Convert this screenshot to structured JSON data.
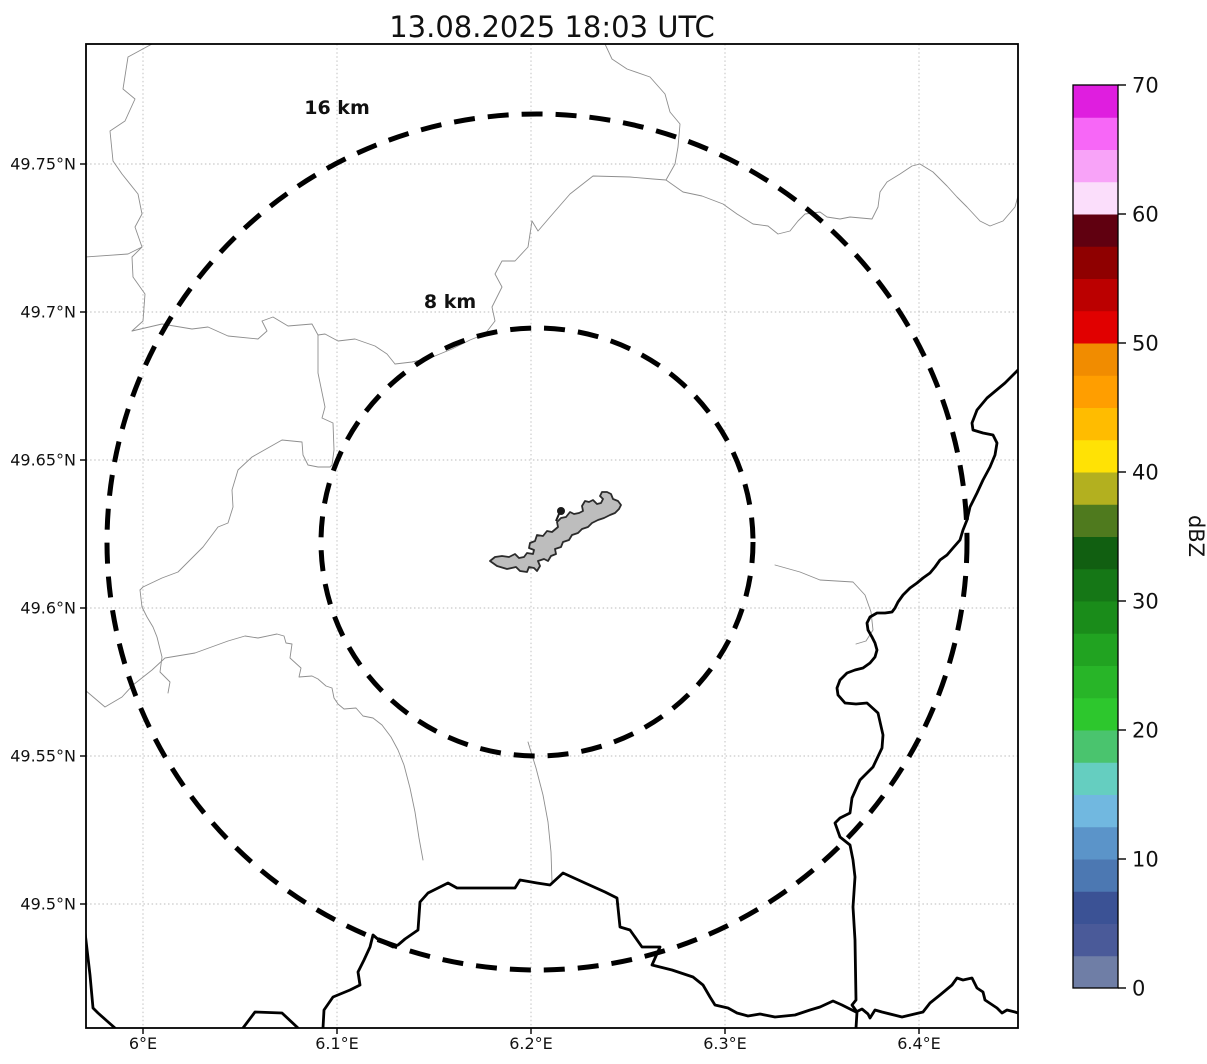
{
  "title": "13.08.2025 18:03 UTC",
  "map": {
    "range_rings": [
      {
        "label": "16 km",
        "radius_km": 16
      },
      {
        "label": "8 km",
        "radius_km": 8
      }
    ],
    "marker_icon": "radar-site-marker",
    "x_axis": {
      "tick_labels": [
        "6°E",
        "6.1°E",
        "6.2°E",
        "6.3°E",
        "6.4°E"
      ]
    },
    "y_axis": {
      "tick_labels": [
        "49.75°N",
        "49.7°N",
        "49.65°N",
        "49.6°N",
        "49.55°N",
        "49.5°N"
      ]
    }
  },
  "colorbar": {
    "label": "dBZ",
    "min": 0,
    "max": 70,
    "ticks": [
      0,
      10,
      20,
      30,
      40,
      50,
      60,
      70
    ],
    "tick_labels": [
      "0",
      "10",
      "20",
      "30",
      "40",
      "50",
      "60",
      "70"
    ],
    "segment_step_dbz": 2.5,
    "colors_bottom_to_top": [
      "#6F7EA6",
      "#4A5A99",
      "#3B5295",
      "#4C78B2",
      "#5B94C9",
      "#71B8E0",
      "#65CEC0",
      "#4AC46E",
      "#2DC72D",
      "#28B528",
      "#21A321",
      "#1A8C1A",
      "#157716",
      "#115F11",
      "#4F7A1E",
      "#B3B01F",
      "#FFE205",
      "#FFBC00",
      "#FF9E00",
      "#F18C00",
      "#E10000",
      "#BB0000",
      "#8F0000",
      "#600010",
      "#FBDEFB",
      "#F8A3F8",
      "#F767F7",
      "#DF1EDF"
    ]
  },
  "colors": {
    "background": "#ffffff",
    "grid": "#bbbbbb",
    "admin_boundary": "#8e8e8e",
    "border_river": "#000000",
    "range_ring": "#000000",
    "airport_fill": "#bdbdbd",
    "airport_outline": "#2b2b2b",
    "text": "#111111"
  }
}
